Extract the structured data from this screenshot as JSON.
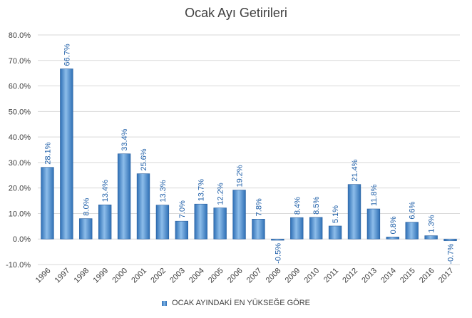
{
  "chart_data": {
    "type": "bar",
    "title": "Ocak Ayı Getirileri",
    "categories": [
      "1996",
      "1997",
      "1998",
      "1999",
      "2000",
      "2001",
      "2002",
      "2003",
      "2004",
      "2005",
      "2006",
      "2007",
      "2008",
      "2009",
      "2010",
      "2011",
      "2012",
      "2013",
      "2014",
      "2015",
      "2016",
      "2017"
    ],
    "series": [
      {
        "name": "OCAK AYINDAKİ EN YÜKSEĞE GÖRE",
        "values": [
          28.1,
          66.7,
          8.0,
          13.4,
          33.4,
          25.6,
          13.3,
          7.0,
          13.7,
          12.2,
          19.2,
          7.8,
          -0.5,
          8.4,
          8.5,
          5.1,
          21.4,
          11.8,
          0.8,
          6.6,
          1.3,
          -0.7
        ],
        "data_labels": [
          "28.1%",
          "66.7%",
          "8.0%",
          "13.4%",
          "33.4%",
          "25.6%",
          "13.3%",
          "7.0%",
          "13.7%",
          "12.2%",
          "19.2%",
          "7.8%",
          "-0.5%",
          "8.4%",
          "8.5%",
          "5.1%",
          "21.4%",
          "11.8%",
          "0.8%",
          "6.6%",
          "1.3%",
          "-0.7%"
        ]
      }
    ],
    "y_ticks": [
      "-10.0%",
      "0.0%",
      "10.0%",
      "20.0%",
      "30.0%",
      "40.0%",
      "50.0%",
      "60.0%",
      "70.0%",
      "80.0%"
    ],
    "ylim": [
      -10,
      80
    ],
    "xlabel": "",
    "ylabel": "",
    "grid": true,
    "legend_position": "bottom",
    "colors": {
      "bar_dark": "#2e6fb5",
      "bar_light": "#8dbdea",
      "label": "#1f5fa8",
      "grid": "#d9d9d9",
      "axis_text": "#404040"
    }
  }
}
